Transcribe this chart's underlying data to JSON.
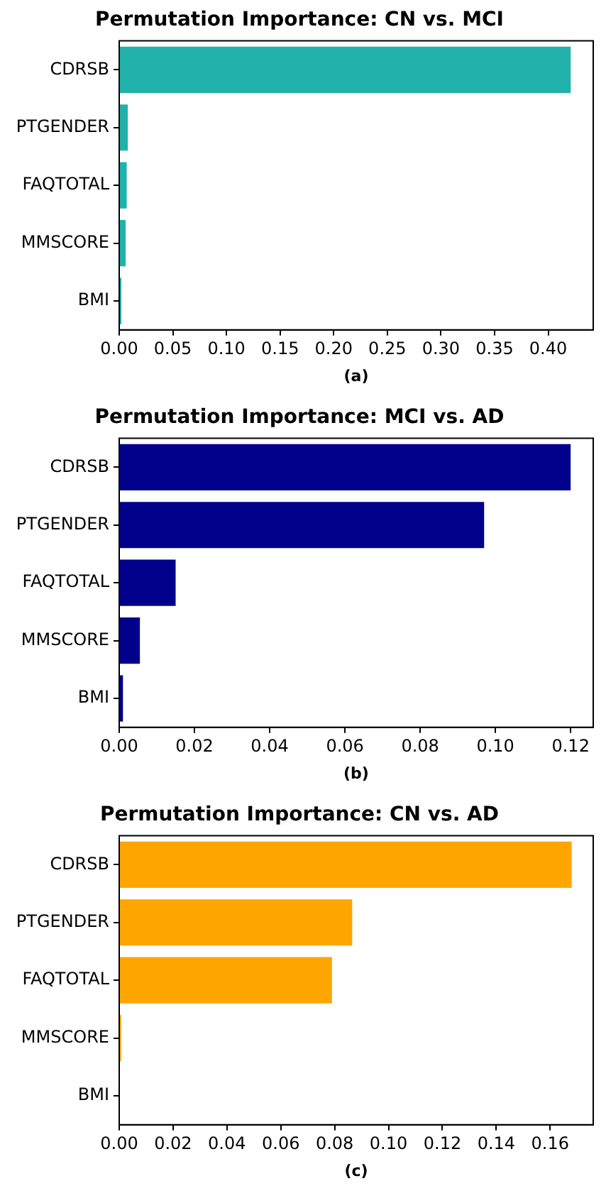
{
  "chart_data": [
    {
      "type": "bar",
      "orientation": "horizontal",
      "title": "Permutation Importance: CN vs. MCI",
      "xlabel": "(a)",
      "categories": [
        "CDRSB",
        "PTGENDER",
        "FAQTOTAL",
        "MMSCORE",
        "BMI"
      ],
      "values": [
        0.421,
        0.008,
        0.007,
        0.006,
        0.002
      ],
      "color": "#20b2aa",
      "xlim": [
        0,
        0.442
      ],
      "xticks": [
        {
          "value": 0,
          "label": "0.00"
        },
        {
          "value": 0.05,
          "label": "0.05"
        },
        {
          "value": 0.1,
          "label": "0.10"
        },
        {
          "value": 0.15,
          "label": "0.15"
        },
        {
          "value": 0.2,
          "label": "0.20"
        },
        {
          "value": 0.25,
          "label": "0.25"
        },
        {
          "value": 0.3,
          "label": "0.30"
        },
        {
          "value": 0.35,
          "label": "0.35"
        },
        {
          "value": 0.4,
          "label": "0.40"
        }
      ],
      "grid": false,
      "legend": false
    },
    {
      "type": "bar",
      "orientation": "horizontal",
      "title": "Permutation Importance: MCI vs. AD",
      "xlabel": "(b)",
      "categories": [
        "CDRSB",
        "PTGENDER",
        "FAQTOTAL",
        "MMSCORE",
        "BMI"
      ],
      "values": [
        0.12,
        0.097,
        0.015,
        0.0055,
        0.001
      ],
      "color": "#00008b",
      "xlim": [
        0,
        0.126
      ],
      "xticks": [
        {
          "value": 0,
          "label": "0.00"
        },
        {
          "value": 0.02,
          "label": "0.02"
        },
        {
          "value": 0.04,
          "label": "0.04"
        },
        {
          "value": 0.06,
          "label": "0.06"
        },
        {
          "value": 0.08,
          "label": "0.08"
        },
        {
          "value": 0.1,
          "label": "0.10"
        },
        {
          "value": 0.12,
          "label": "0.12"
        }
      ],
      "grid": false,
      "legend": false
    },
    {
      "type": "bar",
      "orientation": "horizontal",
      "title": "Permutation Importance: CN vs. AD",
      "xlabel": "(c)",
      "categories": [
        "CDRSB",
        "PTGENDER",
        "FAQTOTAL",
        "MMSCORE",
        "BMI"
      ],
      "values": [
        0.168,
        0.0865,
        0.079,
        0.0007,
        0
      ],
      "color": "#ffa500",
      "xlim": [
        0,
        0.176
      ],
      "xticks": [
        {
          "value": 0,
          "label": "0.00"
        },
        {
          "value": 0.02,
          "label": "0.02"
        },
        {
          "value": 0.04,
          "label": "0.04"
        },
        {
          "value": 0.06,
          "label": "0.06"
        },
        {
          "value": 0.08,
          "label": "0.08"
        },
        {
          "value": 0.1,
          "label": "0.10"
        },
        {
          "value": 0.12,
          "label": "0.12"
        },
        {
          "value": 0.14,
          "label": "0.14"
        },
        {
          "value": 0.16,
          "label": "0.16"
        }
      ],
      "grid": false,
      "legend": false
    }
  ]
}
